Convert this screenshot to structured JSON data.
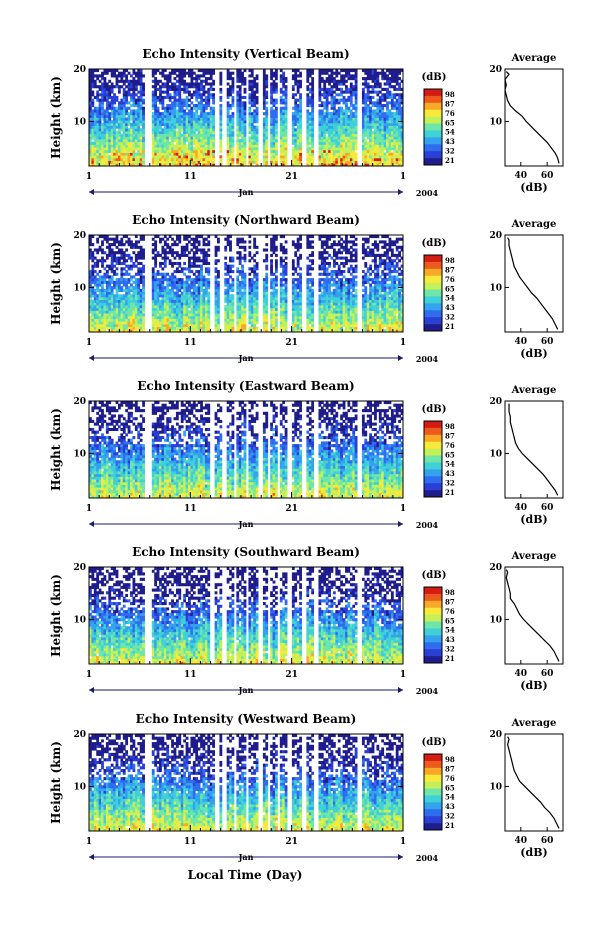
{
  "figure": {
    "xlabel": "Local Time (Day)"
  },
  "colorbar": {
    "label": "(dB)",
    "ticks": [
      "98",
      "87",
      "76",
      "65",
      "54",
      "43",
      "32",
      "21"
    ],
    "colors": [
      "#1f1d8c",
      "#2a3fd6",
      "#2e6cf0",
      "#34a3ee",
      "#3fd0d8",
      "#6ee6a8",
      "#c4f05a",
      "#f8ea3a",
      "#f8a928",
      "#ec5a1e",
      "#d41c14"
    ]
  },
  "chart_data": [
    {
      "type": "heatmap",
      "title": "Echo Intensity (Vertical Beam)",
      "ylabel": "Height (km)",
      "xticks": [
        "1",
        "11",
        "21",
        "1"
      ],
      "month_label": "Jan",
      "year_label": "2004",
      "x_range_day": [
        1,
        32
      ],
      "ylim_km": [
        1.5,
        20
      ],
      "yticks": [
        "10",
        "20"
      ],
      "colorbar_range_db": [
        21,
        98
      ],
      "data_gaps_day": [
        [
          6.6,
          7.3
        ],
        [
          13.5,
          13.8
        ],
        [
          14.0,
          14.5
        ],
        [
          15.3,
          15.6
        ],
        [
          16.5,
          16.8
        ],
        [
          17.8,
          18.1
        ],
        [
          18.6,
          19.0
        ],
        [
          19.5,
          19.9
        ],
        [
          20.6,
          21.0
        ],
        [
          22.0,
          22.4
        ],
        [
          23.2,
          23.6
        ],
        [
          27.5,
          28.0
        ]
      ],
      "profile": {
        "title": "Average",
        "xlabel": "(dB)",
        "xticks": [
          "40",
          "60"
        ],
        "xlim_db": [
          28,
          72
        ],
        "ylim_km": [
          1.5,
          20
        ],
        "yticks": [
          "10",
          "20"
        ],
        "height_km": [
          2,
          3,
          4,
          5,
          6,
          7,
          8,
          9,
          10,
          11,
          12,
          13,
          14,
          15,
          16,
          17,
          18,
          19,
          19.5
        ],
        "power_db": [
          69,
          68,
          66,
          63,
          60,
          56,
          52,
          48,
          44,
          41,
          36,
          32,
          30,
          29,
          28,
          29,
          28,
          31,
          29
        ]
      }
    },
    {
      "type": "heatmap",
      "title": "Echo Intensity (Northward Beam)",
      "ylabel": "Height (km)",
      "xticks": [
        "1",
        "11",
        "21",
        "1"
      ],
      "month_label": "Jan",
      "year_label": "2004",
      "x_range_day": [
        1,
        32
      ],
      "ylim_km": [
        1.5,
        20
      ],
      "yticks": [
        "10",
        "20"
      ],
      "colorbar_range_db": [
        21,
        98
      ],
      "data_gaps_day": [
        [
          6.6,
          7.3
        ],
        [
          13.0,
          13.4
        ],
        [
          13.8,
          14.3
        ],
        [
          15.3,
          15.6
        ],
        [
          16.5,
          16.8
        ],
        [
          17.8,
          18.1
        ],
        [
          18.6,
          19.0
        ],
        [
          19.5,
          19.9
        ],
        [
          20.6,
          21.0
        ],
        [
          22.0,
          22.4
        ],
        [
          23.2,
          23.6
        ],
        [
          27.5,
          28.0
        ]
      ],
      "profile": {
        "title": "Average",
        "xlabel": "(dB)",
        "xticks": [
          "40",
          "60"
        ],
        "xlim_db": [
          28,
          72
        ],
        "ylim_km": [
          1.5,
          20
        ],
        "yticks": [
          "10",
          "20"
        ],
        "height_km": [
          2,
          3,
          4,
          5,
          6,
          7,
          8,
          9,
          10,
          11,
          12,
          13,
          14,
          15,
          16,
          17,
          18,
          19,
          19.5
        ],
        "power_db": [
          68,
          66,
          64,
          61,
          58,
          55,
          52,
          48,
          45,
          42,
          39,
          37,
          35,
          34,
          33,
          32,
          31,
          31,
          30
        ]
      }
    },
    {
      "type": "heatmap",
      "title": "Echo Intensity (Eastward Beam)",
      "ylabel": "Height (km)",
      "xticks": [
        "1",
        "11",
        "21",
        "1"
      ],
      "month_label": "Jan",
      "year_label": "2004",
      "x_range_day": [
        1,
        32
      ],
      "ylim_km": [
        1.5,
        20
      ],
      "yticks": [
        "10",
        "20"
      ],
      "colorbar_range_db": [
        21,
        98
      ],
      "data_gaps_day": [
        [
          6.6,
          7.3
        ],
        [
          13.0,
          13.4
        ],
        [
          14.0,
          14.5
        ],
        [
          15.3,
          15.6
        ],
        [
          16.5,
          16.8
        ],
        [
          17.8,
          18.1
        ],
        [
          18.6,
          19.0
        ],
        [
          19.5,
          19.9
        ],
        [
          20.6,
          21.0
        ],
        [
          22.0,
          22.4
        ],
        [
          23.2,
          23.6
        ],
        [
          27.5,
          28.0
        ]
      ],
      "profile": {
        "title": "Average",
        "xlabel": "(dB)",
        "xticks": [
          "40",
          "60"
        ],
        "xlim_db": [
          28,
          72
        ],
        "ylim_km": [
          1.5,
          20
        ],
        "yticks": [
          "10",
          "20"
        ],
        "height_km": [
          2,
          3,
          4,
          5,
          6,
          7,
          8,
          9,
          10,
          11,
          12,
          13,
          14,
          15,
          16,
          17,
          18,
          19,
          19.5
        ],
        "power_db": [
          68,
          66,
          63,
          60,
          57,
          53,
          49,
          45,
          41,
          38,
          36,
          35,
          34,
          33,
          32,
          32,
          31,
          31,
          31
        ]
      }
    },
    {
      "type": "heatmap",
      "title": "Echo Intensity (Southward Beam)",
      "ylabel": "Height (km)",
      "xticks": [
        "1",
        "11",
        "21",
        "1"
      ],
      "month_label": "Jan",
      "year_label": "2004",
      "x_range_day": [
        1,
        32
      ],
      "ylim_km": [
        1.5,
        20
      ],
      "yticks": [
        "10",
        "20"
      ],
      "colorbar_range_db": [
        21,
        98
      ],
      "data_gaps_day": [
        [
          6.6,
          7.3
        ],
        [
          13.0,
          13.4
        ],
        [
          14.0,
          14.5
        ],
        [
          15.3,
          15.6
        ],
        [
          16.5,
          16.8
        ],
        [
          17.8,
          18.1
        ],
        [
          18.6,
          19.0
        ],
        [
          19.5,
          19.9
        ],
        [
          20.6,
          21.0
        ],
        [
          22.0,
          22.4
        ],
        [
          23.2,
          23.6
        ],
        [
          27.5,
          28.0
        ]
      ],
      "profile": {
        "title": "Average",
        "xlabel": "(dB)",
        "xticks": [
          "40",
          "60"
        ],
        "xlim_db": [
          28,
          72
        ],
        "ylim_km": [
          1.5,
          20
        ],
        "yticks": [
          "10",
          "20"
        ],
        "height_km": [
          2,
          3,
          4,
          5,
          6,
          7,
          8,
          9,
          10,
          11,
          12,
          13,
          14,
          15,
          16,
          17,
          18,
          19,
          19.5
        ],
        "power_db": [
          69,
          67,
          65,
          62,
          58,
          54,
          50,
          46,
          42,
          39,
          37,
          35,
          32,
          32,
          31,
          30,
          29,
          30,
          29
        ]
      }
    },
    {
      "type": "heatmap",
      "title": "Echo Intensity (Westward Beam)",
      "ylabel": "Height (km)",
      "xticks": [
        "1",
        "11",
        "21",
        "1"
      ],
      "month_label": "Jan",
      "year_label": "2004",
      "x_range_day": [
        1,
        32
      ],
      "ylim_km": [
        1.5,
        20
      ],
      "yticks": [
        "10",
        "20"
      ],
      "colorbar_range_db": [
        21,
        98
      ],
      "data_gaps_day": [
        [
          6.6,
          7.3
        ],
        [
          13.5,
          13.8
        ],
        [
          14.0,
          14.5
        ],
        [
          15.3,
          15.6
        ],
        [
          16.5,
          16.8
        ],
        [
          17.8,
          18.1
        ],
        [
          18.6,
          19.0
        ],
        [
          19.5,
          19.9
        ],
        [
          20.6,
          21.0
        ],
        [
          22.0,
          22.4
        ],
        [
          23.2,
          23.6
        ],
        [
          27.5,
          28.0
        ]
      ],
      "profile": {
        "title": "Average",
        "xlabel": "(dB)",
        "xticks": [
          "40",
          "60"
        ],
        "xlim_db": [
          28,
          72
        ],
        "ylim_km": [
          1.5,
          20
        ],
        "yticks": [
          "10",
          "20"
        ],
        "height_km": [
          2,
          3,
          4,
          5,
          6,
          7,
          8,
          9,
          10,
          11,
          12,
          13,
          14,
          15,
          16,
          17,
          18,
          19,
          19.5
        ],
        "power_db": [
          69,
          67,
          65,
          62,
          58,
          55,
          51,
          47,
          43,
          39,
          37,
          35,
          34,
          33,
          32,
          31,
          30,
          31,
          30
        ]
      }
    }
  ]
}
